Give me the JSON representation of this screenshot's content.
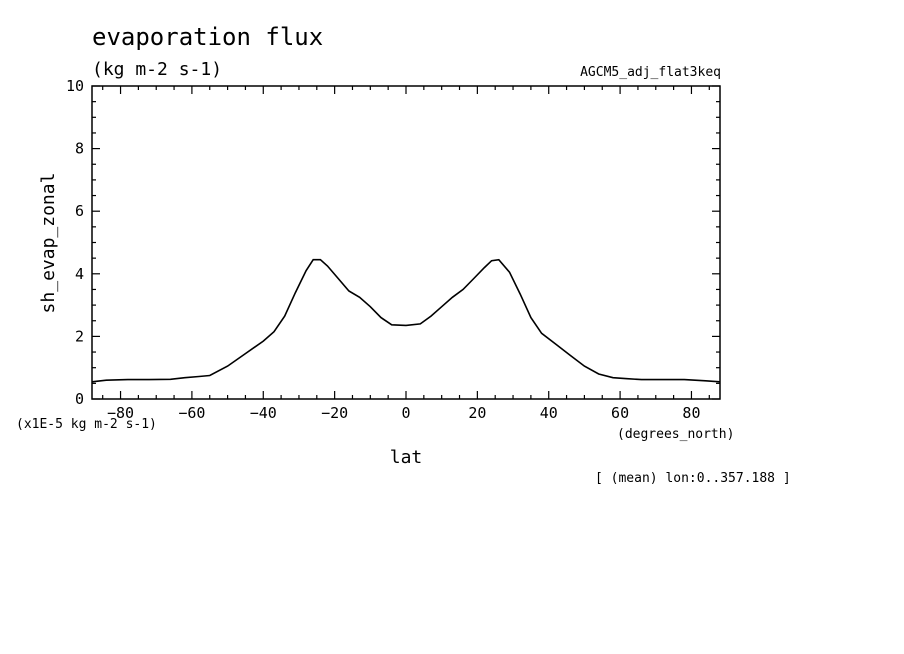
{
  "chart_data": {
    "type": "line",
    "title": "evaporation flux",
    "subtitle": "(kg m-2 s-1)",
    "model": "AGCM5_adj_flat3keq",
    "xlabel": "lat",
    "xunits": "(degrees_north)",
    "ylabel": "sh_evap_zonal",
    "yunits": "(x1E-5 kg m-2 s-1)",
    "footnote": "[ (mean) lon:0..357.188 ]",
    "xlim": [
      -88,
      88
    ],
    "ylim": [
      0,
      10
    ],
    "xticks": [
      -80,
      -60,
      -40,
      -20,
      0,
      20,
      40,
      60,
      80
    ],
    "yticks": [
      0,
      2,
      4,
      6,
      8,
      10
    ],
    "grid": false,
    "series": [
      {
        "x": [
          -88,
          -84,
          -78,
          -72,
          -66,
          -62,
          -58,
          -55,
          -50,
          -45,
          -40,
          -37,
          -34,
          -31,
          -28,
          -26,
          -24,
          -22,
          -19,
          -16,
          -13,
          -10,
          -7,
          -4,
          0,
          4,
          7,
          10,
          13,
          16,
          19,
          22,
          24,
          26,
          29,
          32,
          35,
          38,
          42,
          46,
          50,
          54,
          58,
          62,
          66,
          72,
          78,
          84,
          88
        ],
        "y": [
          0.55,
          0.6,
          0.62,
          0.62,
          0.63,
          0.68,
          0.72,
          0.75,
          1.05,
          1.45,
          1.85,
          2.15,
          2.65,
          3.4,
          4.1,
          4.45,
          4.45,
          4.25,
          3.85,
          3.45,
          3.25,
          2.95,
          2.6,
          2.37,
          2.35,
          2.4,
          2.65,
          2.95,
          3.25,
          3.5,
          3.85,
          4.2,
          4.42,
          4.45,
          4.05,
          3.35,
          2.6,
          2.1,
          1.75,
          1.4,
          1.05,
          0.8,
          0.68,
          0.65,
          0.62,
          0.62,
          0.62,
          0.58,
          0.55
        ]
      }
    ]
  }
}
